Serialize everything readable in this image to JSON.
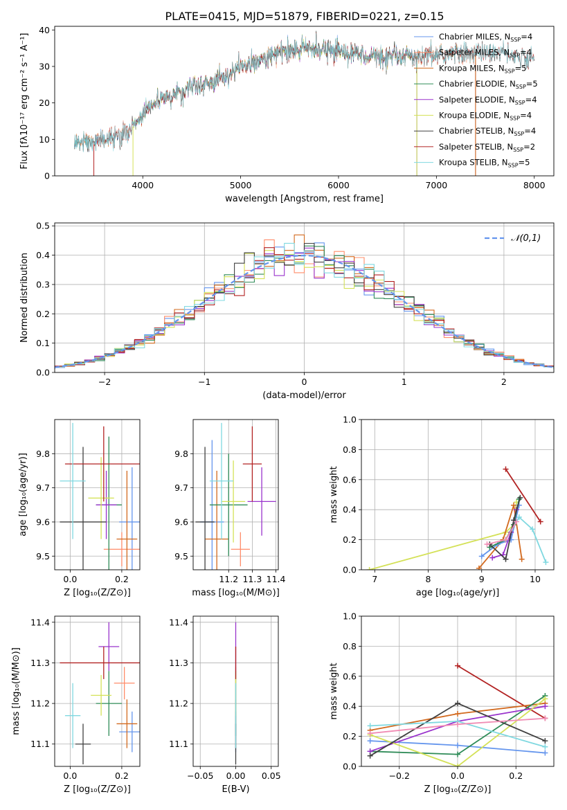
{
  "figure_title": "PLATE=0415, MJD=51879, FIBERID=0221, z=0.15",
  "colors": {
    "chabrier_miles": "#6495ed",
    "salpeter_miles": "#ff8c69",
    "kroupa_miles": "#d2691e",
    "chabrier_elodie": "#2e8b57",
    "salpeter_elodie": "#9932cc",
    "kroupa_elodie": "#d4e157",
    "chabrier_stelib": "#404040",
    "salpeter_stelib": "#b22222",
    "kroupa_stelib": "#7fd8e0",
    "pink": "#f08cb4",
    "normal_curve": "#6495ed",
    "grid": "#b0b0b0"
  },
  "chart_data": [
    {
      "id": "spectrum",
      "type": "line",
      "xlabel": "wavelength [Angstrom, rest frame]",
      "ylabel": "Flux [fλ10⁻¹⁷ erg cm⁻² s⁻¹ A⁻¹]",
      "xlim": [
        3100,
        8200
      ],
      "ylim": [
        0,
        41
      ],
      "xticks": [
        4000,
        5000,
        6000,
        7000,
        8000
      ],
      "yticks": [
        0,
        10,
        20,
        30,
        40
      ],
      "grid": false,
      "legend_position": "upper right",
      "series": [
        {
          "name": "Chabrier MILES, N_SSP=4",
          "color_key": "chabrier_miles",
          "x_range": [
            3300,
            7400
          ]
        },
        {
          "name": "Salpeter MILES, N_SSP=4",
          "color_key": "salpeter_miles",
          "x_range": [
            3300,
            7400
          ]
        },
        {
          "name": "Kroupa MILES, N_SSP=5",
          "color_key": "kroupa_miles",
          "x_range": [
            3300,
            7400
          ]
        },
        {
          "name": "Chabrier ELODIE, N_SSP=5",
          "color_key": "chabrier_elodie",
          "x_range": [
            3900,
            6800
          ]
        },
        {
          "name": "Salpeter ELODIE, N_SSP=4",
          "color_key": "salpeter_elodie",
          "x_range": [
            3900,
            6800
          ]
        },
        {
          "name": "Kroupa ELODIE, N_SSP=4",
          "color_key": "kroupa_elodie",
          "x_range": [
            3900,
            6800
          ]
        },
        {
          "name": "Chabrier STELIB, N_SSP=4",
          "color_key": "chabrier_stelib",
          "x_range": [
            3300,
            8000
          ]
        },
        {
          "name": "Salpeter STELIB, N_SSP=2",
          "color_key": "salpeter_stelib",
          "x_range": [
            3500,
            8000
          ]
        },
        {
          "name": "Kroupa STELIB, N_SSP=5",
          "color_key": "kroupa_stelib",
          "x_range": [
            3300,
            8000
          ]
        }
      ],
      "continuum": [
        [
          3300,
          9
        ],
        [
          3500,
          9.5
        ],
        [
          3700,
          10.5
        ],
        [
          3850,
          12
        ],
        [
          3950,
          15
        ],
        [
          4050,
          19
        ],
        [
          4200,
          21
        ],
        [
          4500,
          24
        ],
        [
          4800,
          27
        ],
        [
          5100,
          31
        ],
        [
          5400,
          34
        ],
        [
          5700,
          35
        ],
        [
          6000,
          34.5
        ],
        [
          6300,
          33
        ],
        [
          6600,
          32.5
        ],
        [
          6900,
          33
        ],
        [
          7200,
          33.5
        ],
        [
          7600,
          34
        ],
        [
          8000,
          32
        ]
      ]
    },
    {
      "id": "residual-hist",
      "type": "line",
      "xlabel": "(data-model)/error",
      "ylabel": "Normed distribution",
      "xlim": [
        -2.5,
        2.5
      ],
      "ylim": [
        0,
        0.51
      ],
      "xticks": [
        -2,
        -1,
        0,
        1,
        2
      ],
      "yticks": [
        0.0,
        0.1,
        0.2,
        0.3,
        0.4,
        0.5
      ],
      "grid": true,
      "legend_position": "upper right",
      "legend": [
        "𝒩(0,1)"
      ],
      "bin_width": 0.1
    },
    {
      "id": "age-vs-Z",
      "type": "scatter",
      "xlabel": "Z [log₁₀(Z/Z⊙)]",
      "ylabel": "age  [log₁₀(age/yr)]",
      "xlim": [
        -0.06,
        0.27
      ],
      "ylim": [
        9.46,
        9.9
      ],
      "xticks": [
        0.0,
        0.2
      ],
      "yticks": [
        9.5,
        9.6,
        9.7,
        9.8
      ],
      "points": [
        {
          "color_key": "chabrier_miles",
          "x": 0.24,
          "y": 9.6,
          "xerr": 0.05,
          "yerr": 0.16
        },
        {
          "color_key": "salpeter_miles",
          "x": 0.2,
          "y": 9.52,
          "xerr": 0.07,
          "yerr": 0.05
        },
        {
          "color_key": "kroupa_miles",
          "x": 0.22,
          "y": 9.55,
          "xerr": 0.04,
          "yerr": 0.2
        },
        {
          "color_key": "chabrier_elodie",
          "x": 0.15,
          "y": 9.65,
          "xerr": 0.05,
          "yerr": 0.2
        },
        {
          "color_key": "salpeter_elodie",
          "x": 0.14,
          "y": 9.65,
          "xerr": 0.04,
          "yerr": 0.1
        },
        {
          "color_key": "kroupa_elodie",
          "x": 0.12,
          "y": 9.67,
          "xerr": 0.05,
          "yerr": 0.12
        },
        {
          "color_key": "chabrier_stelib",
          "x": 0.05,
          "y": 9.6,
          "xerr": 0.09,
          "yerr": 0.22
        },
        {
          "color_key": "salpeter_stelib",
          "x": 0.13,
          "y": 9.77,
          "xerr": 0.15,
          "yerr": 0.11
        },
        {
          "color_key": "kroupa_stelib",
          "x": 0.01,
          "y": 9.72,
          "xerr": 0.05,
          "yerr": 0.17
        }
      ]
    },
    {
      "id": "age-vs-mass",
      "type": "scatter",
      "xlabel": "mass [log₁₀(M/M⊙)]",
      "ylabel": "",
      "xlim": [
        11.05,
        11.41
      ],
      "ylim": [
        9.46,
        9.9
      ],
      "xticks": [
        11.2,
        11.3,
        11.4
      ],
      "yticks": [
        9.5,
        9.6,
        9.7,
        9.8
      ],
      "points": [
        {
          "color_key": "chabrier_miles",
          "x": 11.13,
          "y": 9.6,
          "xerr": 0.05,
          "yerr": 0.24
        },
        {
          "color_key": "salpeter_miles",
          "x": 11.25,
          "y": 9.52,
          "xerr": 0.04,
          "yerr": 0.05
        },
        {
          "color_key": "kroupa_miles",
          "x": 11.15,
          "y": 9.55,
          "xerr": 0.05,
          "yerr": 0.2
        },
        {
          "color_key": "chabrier_elodie",
          "x": 11.2,
          "y": 9.65,
          "xerr": 0.08,
          "yerr": 0.15
        },
        {
          "color_key": "salpeter_elodie",
          "x": 11.34,
          "y": 9.66,
          "xerr": 0.06,
          "yerr": 0.1
        },
        {
          "color_key": "kroupa_elodie",
          "x": 11.22,
          "y": 9.66,
          "xerr": 0.05,
          "yerr": 0.12
        },
        {
          "color_key": "chabrier_stelib",
          "x": 11.1,
          "y": 9.6,
          "xerr": 0.04,
          "yerr": 0.22
        },
        {
          "color_key": "salpeter_stelib",
          "x": 11.3,
          "y": 9.77,
          "xerr": 0.04,
          "yerr": 0.11
        },
        {
          "color_key": "kroupa_stelib",
          "x": 11.17,
          "y": 9.72,
          "xerr": 0.05,
          "yerr": 0.17
        }
      ]
    },
    {
      "id": "weight-vs-age",
      "type": "line",
      "xlabel": "age  [log₁₀(age/yr)]",
      "ylabel": "mass weight",
      "xlim": [
        6.75,
        10.35
      ],
      "ylim": [
        0,
        1
      ],
      "xticks": [
        7,
        8,
        9,
        10
      ],
      "yticks": [
        0.0,
        0.2,
        0.4,
        0.6,
        0.8,
        1.0
      ],
      "grid": true,
      "series": [
        {
          "color_key": "kroupa_elodie",
          "x": [
            6.9,
            9.45,
            9.6,
            9.65
          ],
          "y": [
            0.0,
            0.25,
            0.3,
            0.45
          ]
        },
        {
          "color_key": "salpeter_stelib",
          "x": [
            9.45,
            10.1
          ],
          "y": [
            0.67,
            0.32
          ]
        },
        {
          "color_key": "kroupa_stelib",
          "x": [
            9.45,
            9.7,
            9.95,
            10.2
          ],
          "y": [
            0.2,
            0.35,
            0.27,
            0.05
          ]
        },
        {
          "color_key": "kroupa_miles",
          "x": [
            8.95,
            9.4,
            9.6,
            9.75
          ],
          "y": [
            0.01,
            0.2,
            0.43,
            0.07
          ]
        },
        {
          "color_key": "chabrier_miles",
          "x": [
            9.0,
            9.3,
            9.55,
            9.7
          ],
          "y": [
            0.09,
            0.17,
            0.2,
            0.43
          ]
        },
        {
          "color_key": "chabrier_elodie",
          "x": [
            9.15,
            9.45,
            9.6,
            9.7
          ],
          "y": [
            0.15,
            0.2,
            0.3,
            0.47
          ]
        },
        {
          "color_key": "salpeter_elodie",
          "x": [
            9.2,
            9.4,
            9.55,
            9.65
          ],
          "y": [
            0.08,
            0.1,
            0.25,
            0.4
          ]
        },
        {
          "color_key": "chabrier_stelib",
          "x": [
            9.15,
            9.45,
            9.6,
            9.72
          ],
          "y": [
            0.17,
            0.07,
            0.33,
            0.48
          ]
        },
        {
          "color_key": "pink",
          "x": [
            9.1,
            9.45,
            9.65
          ],
          "y": [
            0.17,
            0.2,
            0.32
          ]
        }
      ]
    },
    {
      "id": "mass-vs-Z",
      "type": "scatter",
      "xlabel": "Z [log₁₀(Z/Z⊙)]",
      "ylabel": "mass [log₁₀(M/M⊙)]",
      "xlim": [
        -0.06,
        0.27
      ],
      "ylim": [
        11.045,
        11.415
      ],
      "xticks": [
        0.0,
        0.2
      ],
      "yticks": [
        11.1,
        11.2,
        11.3,
        11.4
      ],
      "points": [
        {
          "color_key": "chabrier_miles",
          "x": 0.24,
          "y": 11.13,
          "xerr": 0.05,
          "yerr": 0.05
        },
        {
          "color_key": "salpeter_miles",
          "x": 0.21,
          "y": 11.25,
          "xerr": 0.04,
          "yerr": 0.04
        },
        {
          "color_key": "kroupa_miles",
          "x": 0.22,
          "y": 11.15,
          "xerr": 0.04,
          "yerr": 0.06
        },
        {
          "color_key": "chabrier_elodie",
          "x": 0.15,
          "y": 11.2,
          "xerr": 0.05,
          "yerr": 0.08
        },
        {
          "color_key": "salpeter_elodie",
          "x": 0.15,
          "y": 11.34,
          "xerr": 0.04,
          "yerr": 0.06
        },
        {
          "color_key": "kroupa_elodie",
          "x": 0.12,
          "y": 11.22,
          "xerr": 0.04,
          "yerr": 0.05
        },
        {
          "color_key": "chabrier_stelib",
          "x": 0.05,
          "y": 11.1,
          "xerr": 0.03,
          "yerr": 0.05
        },
        {
          "color_key": "salpeter_stelib",
          "x": 0.13,
          "y": 11.3,
          "xerr": 0.17,
          "yerr": 0.04
        },
        {
          "color_key": "kroupa_stelib",
          "x": 0.01,
          "y": 11.17,
          "xerr": 0.03,
          "yerr": 0.08
        }
      ]
    },
    {
      "id": "mass-vs-ebv",
      "type": "scatter",
      "xlabel": "E(B-V)",
      "ylabel": "",
      "xlim": [
        -0.06,
        0.06
      ],
      "ylim": [
        11.045,
        11.415
      ],
      "xticks": [
        -0.05,
        0.0,
        0.05
      ],
      "yticks": [
        11.1,
        11.2,
        11.3,
        11.4
      ],
      "points": [
        {
          "color_key": "chabrier_miles",
          "x": 0,
          "y": 11.13,
          "yerr": 0.05
        },
        {
          "color_key": "salpeter_miles",
          "x": 0,
          "y": 11.25,
          "yerr": 0.04
        },
        {
          "color_key": "kroupa_miles",
          "x": 0,
          "y": 11.15,
          "yerr": 0.06
        },
        {
          "color_key": "chabrier_elodie",
          "x": 0,
          "y": 11.2,
          "yerr": 0.08
        },
        {
          "color_key": "salpeter_elodie",
          "x": 0,
          "y": 11.34,
          "yerr": 0.06
        },
        {
          "color_key": "kroupa_elodie",
          "x": 0,
          "y": 11.22,
          "yerr": 0.05
        },
        {
          "color_key": "chabrier_stelib",
          "x": 0,
          "y": 11.1,
          "yerr": 0.05
        },
        {
          "color_key": "salpeter_stelib",
          "x": 0,
          "y": 11.3,
          "yerr": 0.04
        },
        {
          "color_key": "kroupa_stelib",
          "x": 0,
          "y": 11.17,
          "yerr": 0.08
        }
      ]
    },
    {
      "id": "weight-vs-Z",
      "type": "line",
      "xlabel": "Z [log₁₀(Z/Z⊙)]",
      "ylabel": "mass weight",
      "xlim": [
        -0.33,
        0.33
      ],
      "ylim": [
        0,
        1
      ],
      "xticks": [
        -0.2,
        0.0,
        0.2
      ],
      "yticks": [
        0.0,
        0.2,
        0.4,
        0.6,
        0.8,
        1.0
      ],
      "grid": true,
      "series": [
        {
          "color_key": "salpeter_stelib",
          "x": [
            0.0,
            0.3
          ],
          "y": [
            0.67,
            0.32
          ]
        },
        {
          "color_key": "kroupa_miles",
          "x": [
            -0.3,
            0.0,
            0.3
          ],
          "y": [
            0.24,
            0.35,
            0.42
          ]
        },
        {
          "color_key": "chabrier_miles",
          "x": [
            -0.3,
            0.0,
            0.3
          ],
          "y": [
            0.17,
            0.14,
            0.09
          ]
        },
        {
          "color_key": "chabrier_elodie",
          "x": [
            -0.3,
            0.0,
            0.3
          ],
          "y": [
            0.1,
            0.08,
            0.47
          ]
        },
        {
          "color_key": "salpeter_elodie",
          "x": [
            -0.3,
            0.0,
            0.3
          ],
          "y": [
            0.1,
            0.3,
            0.4
          ]
        },
        {
          "color_key": "kroupa_elodie",
          "x": [
            -0.3,
            0.0,
            0.3
          ],
          "y": [
            0.21,
            0.0,
            0.45
          ]
        },
        {
          "color_key": "chabrier_stelib",
          "x": [
            -0.3,
            0.0,
            0.3
          ],
          "y": [
            0.07,
            0.42,
            0.17
          ]
        },
        {
          "color_key": "kroupa_stelib",
          "x": [
            -0.3,
            0.0,
            0.3
          ],
          "y": [
            0.27,
            0.3,
            0.13
          ]
        },
        {
          "color_key": "pink",
          "x": [
            -0.3,
            0.0,
            0.3
          ],
          "y": [
            0.22,
            0.28,
            0.32
          ]
        }
      ]
    }
  ]
}
